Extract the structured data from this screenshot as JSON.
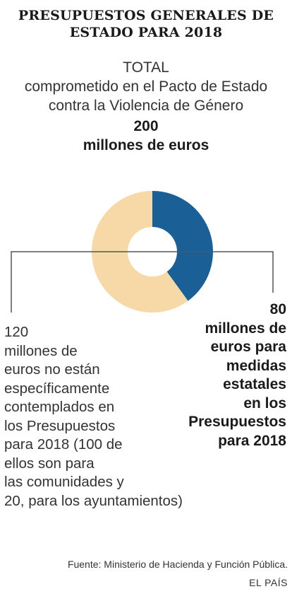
{
  "title": {
    "line1": "PRESUPUESTOS GENERALES DE",
    "line2": "ESTADO PARA 2018"
  },
  "total": {
    "label_lines": [
      "TOTAL",
      "comprometido en el Pacto de Estado",
      "contra la Violencia de Género"
    ],
    "value_lines": [
      "200",
      "millones de euros"
    ]
  },
  "labels": {
    "left_lines": [
      "120",
      "millones de",
      "euros no están",
      "específicamente",
      "contemplados en",
      "los Presupuestos",
      "para 2018 (100 de",
      "ellos son para",
      "las comunidades y",
      "20, para los ayuntamientos)"
    ],
    "right_lines": [
      "80",
      "millones de",
      "euros para",
      "medidas",
      "estatales",
      "en los",
      "Presupuestos",
      "para 2018"
    ]
  },
  "footer": {
    "source": "Fuente: Ministerio de Hacienda y Función Pública.",
    "brand": "EL PAÍS"
  },
  "colors": {
    "state": "#1a5f96",
    "unplanned": "#f7d9a8",
    "leader": "#555555"
  },
  "chart_data": {
    "type": "pie",
    "variant": "donut",
    "unit": "millones de euros",
    "total": 200,
    "categories": [
      "medidas estatales en los Presupuestos para 2018",
      "no están específicamente contemplados en los Presupuestos para 2018"
    ],
    "values": [
      80,
      120
    ]
  }
}
